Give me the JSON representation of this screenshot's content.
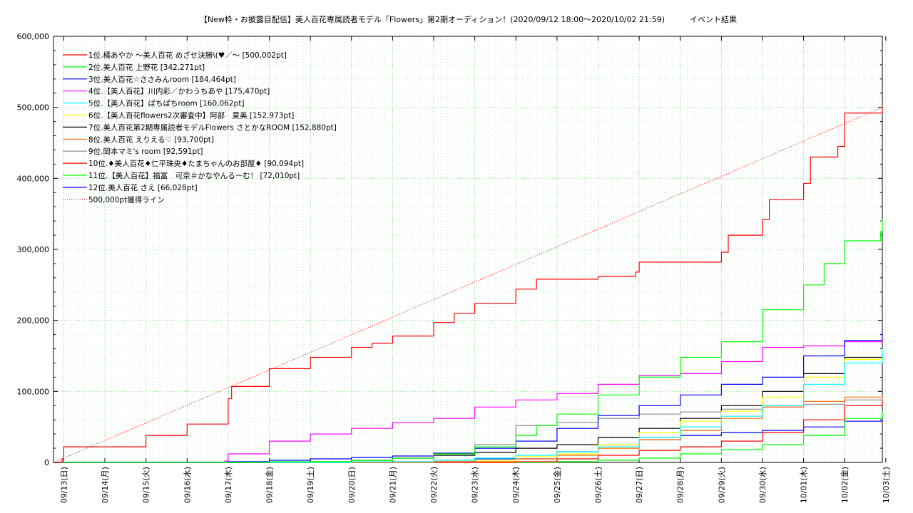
{
  "chart_data": {
    "type": "line",
    "title": "【New枠・お披露目配信】美人百花専属読者モデル「Flowers」第2期オーディション！(2020/09/12 18:00〜2020/10/02 21:59)",
    "subtitle": "イベント結果",
    "x_start": "2020-09-12 18:00",
    "x_end": "2020-10-02 21:59",
    "x_tick_labels": [
      "09/13(日)",
      "09/14(月)",
      "09/15(火)",
      "09/16(水)",
      "09/17(木)",
      "09/18(金)",
      "09/19(土)",
      "09/20(日)",
      "09/21(月)",
      "09/22(火)",
      "09/23(水)",
      "09/24(木)",
      "09/25(金)",
      "09/26(土)",
      "09/27(日)",
      "09/28(月)",
      "09/29(火)",
      "09/30(水)",
      "10/01(木)",
      "10/02(金)",
      "10/03(土)"
    ],
    "y_tick_labels": [
      "0",
      "100,000",
      "200,000",
      "300,000",
      "400,000",
      "500,000",
      "600,000"
    ],
    "ylim": [
      0,
      600000
    ],
    "grid": true,
    "legend_position": "top-left",
    "target_line": {
      "name": "500,000pt獲得ライン",
      "color": "#ff0000",
      "x": [
        "09/12 18:00",
        "10/02 21:59"
      ],
      "y": [
        0,
        500000
      ]
    },
    "series": [
      {
        "name": "1位.橘あやか 〜美人百花 めざせ決勝\\(♥／〜 [500,002pt]",
        "color": "#ff0000",
        "x": [
          "09/12 18:00",
          "09/12 23:00",
          "09/13 00:00",
          "09/14 22:00",
          "09/15 00:00",
          "09/15 22:00",
          "09/16 00:00",
          "09/16 22:00",
          "09/17 00:00",
          "09/17 02:00",
          "09/18 00:00",
          "09/19 00:00",
          "09/20 00:00",
          "09/20 12:00",
          "09/21 00:00",
          "09/22 00:00",
          "09/22 12:00",
          "09/23 00:00",
          "09/24 00:00",
          "09/24 12:00",
          "09/26 00:00",
          "09/26 22:00",
          "09/27 00:00",
          "09/29 00:00",
          "09/29 04:00",
          "09/30 00:00",
          "09/30 04:00",
          "10/01 00:00",
          "10/01 04:00",
          "10/01 20:00",
          "10/02 00:00",
          "10/02 21:59"
        ],
        "y": [
          0,
          5000,
          22000,
          22000,
          38000,
          38000,
          54000,
          54000,
          90000,
          107000,
          132000,
          148000,
          162000,
          168000,
          178000,
          197000,
          210000,
          224000,
          244000,
          258000,
          262000,
          268000,
          282000,
          296000,
          320000,
          342000,
          370000,
          393000,
          430000,
          445000,
          492000,
          500002
        ]
      },
      {
        "name": "2位.美人百花 上野花 [342,271pt]",
        "color": "#00ff00",
        "x": [
          "09/12 18:00",
          "09/18 00:00",
          "09/20 00:00",
          "09/21 00:00",
          "09/22 00:00",
          "09/23 00:00",
          "09/24 00:00",
          "09/24 12:00",
          "09/25 00:00",
          "09/26 00:00",
          "09/27 00:00",
          "09/28 00:00",
          "09/29 00:00",
          "09/30 00:00",
          "10/01 00:00",
          "10/01 12:00",
          "10/02 00:00",
          "10/02 21:00",
          "10/02 21:59"
        ],
        "y": [
          0,
          1000,
          3000,
          6000,
          12000,
          22000,
          38000,
          52000,
          68000,
          95000,
          120000,
          148000,
          170000,
          215000,
          250000,
          280000,
          312000,
          325000,
          342271
        ]
      },
      {
        "name": "3位.美人百花☆ささみんroom [184,464pt]",
        "color": "#0000ff",
        "x": [
          "09/12 18:00",
          "09/17 00:00",
          "09/18 00:00",
          "09/19 00:00",
          "09/20 00:00",
          "09/21 00:00",
          "09/22 00:00",
          "09/23 00:00",
          "09/24 00:00",
          "09/25 00:00",
          "09/26 00:00",
          "09/27 00:00",
          "09/28 00:00",
          "09/29 00:00",
          "09/30 00:00",
          "10/01 00:00",
          "10/02 00:00",
          "10/02 21:59"
        ],
        "y": [
          0,
          1000,
          3000,
          5000,
          7000,
          9000,
          13000,
          20000,
          30000,
          48000,
          66000,
          80000,
          95000,
          110000,
          120000,
          150000,
          172000,
          184464
        ]
      },
      {
        "name": "4位.【美人百花】川内彩／かわうちあや [175,470pt]",
        "color": "#ff00ff",
        "x": [
          "09/12 18:00",
          "09/16 22:00",
          "09/17 00:00",
          "09/18 00:00",
          "09/19 00:00",
          "09/20 00:00",
          "09/21 00:00",
          "09/22 00:00",
          "09/23 00:00",
          "09/24 00:00",
          "09/25 00:00",
          "09/26 00:00",
          "09/27 00:00",
          "09/28 00:00",
          "09/29 00:00",
          "09/30 00:00",
          "10/01 00:00",
          "10/02 00:00",
          "10/02 21:59"
        ],
        "y": [
          0,
          2000,
          12000,
          30000,
          40000,
          48000,
          56000,
          62000,
          78000,
          88000,
          97000,
          110000,
          122000,
          125000,
          142000,
          162000,
          164000,
          170000,
          175470
        ]
      },
      {
        "name": "5位.【美人百花】ぱちぱちroom [160,062pt]",
        "color": "#00ffff",
        "x": [
          "09/12 18:00",
          "09/20 00:00",
          "09/22 00:00",
          "09/23 00:00",
          "09/24 00:00",
          "09/25 00:00",
          "09/26 00:00",
          "09/27 00:00",
          "09/28 00:00",
          "09/29 00:00",
          "09/30 00:00",
          "10/01 00:00",
          "10/02 00:00",
          "10/02 21:59"
        ],
        "y": [
          0,
          1000,
          3000,
          6000,
          10000,
          15000,
          22000,
          35000,
          50000,
          65000,
          80000,
          110000,
          140000,
          160062
        ]
      },
      {
        "name": "6位.【美人百花flowers2次審査中】阿部　夏美 [152,973pt]",
        "color": "#ffff00",
        "x": [
          "09/12 18:00",
          "09/20 00:00",
          "09/22 00:00",
          "09/24 00:00",
          "09/25 00:00",
          "09/26 00:00",
          "09/27 00:00",
          "09/28 00:00",
          "09/29 00:00",
          "09/30 00:00",
          "10/01 00:00",
          "10/02 00:00",
          "10/02 21:59"
        ],
        "y": [
          0,
          1000,
          3000,
          8000,
          12000,
          25000,
          42000,
          58000,
          72000,
          92000,
          120000,
          145000,
          152973
        ]
      },
      {
        "name": "7位.美人百花第2期専属読者モデルFlowers さとかなROOM [152,880pt]",
        "color": "#000000",
        "x": [
          "09/12 18:00",
          "09/19 00:00",
          "09/20 00:00",
          "09/21 00:00",
          "09/22 00:00",
          "09/23 00:00",
          "09/24 00:00",
          "09/25 00:00",
          "09/26 00:00",
          "09/27 00:00",
          "09/28 00:00",
          "09/29 00:00",
          "09/30 00:00",
          "10/01 00:00",
          "10/02 00:00",
          "10/02 21:59"
        ],
        "y": [
          0,
          1000,
          3000,
          6000,
          10000,
          14000,
          20000,
          25000,
          35000,
          48000,
          62000,
          80000,
          100000,
          125000,
          148000,
          152880
        ]
      },
      {
        "name": "8位.美人百花 えりえる♡ [93,700pt]",
        "color": "#ff6600",
        "x": [
          "09/12 18:00",
          "09/22 00:00",
          "09/24 00:00",
          "09/25 00:00",
          "09/26 00:00",
          "09/27 00:00",
          "09/28 00:00",
          "09/29 00:00",
          "09/30 00:00",
          "10/01 00:00",
          "10/02 00:00",
          "10/02 21:59"
        ],
        "y": [
          0,
          1000,
          5000,
          10000,
          20000,
          32000,
          45000,
          62000,
          78000,
          86000,
          92000,
          93700
        ]
      },
      {
        "name": "9位.岡本マミ's room [92,591pt]",
        "color": "#888888",
        "x": [
          "09/12 18:00",
          "09/22 00:00",
          "09/23 00:00",
          "09/24 00:00",
          "09/25 00:00",
          "09/26 00:00",
          "09/27 00:00",
          "09/28 00:00",
          "09/29 00:00",
          "09/30 00:00",
          "10/01 00:00",
          "10/02 00:00",
          "10/02 21:59"
        ],
        "y": [
          0,
          10000,
          25000,
          52000,
          56000,
          62000,
          68000,
          71000,
          75000,
          78000,
          82000,
          88000,
          92591
        ]
      },
      {
        "name": "10位.♦美人百花♦仁平珠央♦たまちゃんのお部屋♦ [90,094pt]",
        "color": "#ff0000",
        "x": [
          "09/12 18:00",
          "09/24 00:00",
          "09/25 00:00",
          "09/26 00:00",
          "09/27 00:00",
          "09/28 00:00",
          "09/29 00:00",
          "09/30 00:00",
          "10/01 00:00",
          "10/02 00:00",
          "10/02 21:59"
        ],
        "y": [
          0,
          1000,
          5000,
          10000,
          17000,
          22000,
          30000,
          42000,
          60000,
          80000,
          90094
        ]
      },
      {
        "name": "11位.【美人百花】福冨　可奈＃かなやんるーむ！ [72,010pt]",
        "color": "#00ff00",
        "x": [
          "09/12 18:00",
          "09/25 00:00",
          "09/26 00:00",
          "09/27 00:00",
          "09/28 00:00",
          "09/29 00:00",
          "09/30 00:00",
          "10/01 00:00",
          "10/02 00:00",
          "10/02 21:59"
        ],
        "y": [
          0,
          1000,
          3000,
          6000,
          12000,
          18000,
          25000,
          38000,
          62000,
          72010
        ]
      },
      {
        "name": "12位.美人百花 さえ [66,028pt]",
        "color": "#0000ff",
        "x": [
          "09/12 18:00",
          "09/21 00:00",
          "09/23 00:00",
          "09/25 00:00",
          "09/26 00:00",
          "09/27 00:00",
          "09/28 00:00",
          "09/29 00:00",
          "09/30 00:00",
          "10/01 00:00",
          "10/02 00:00",
          "10/02 21:59"
        ],
        "y": [
          0,
          1000,
          5000,
          15000,
          25000,
          32000,
          38000,
          42000,
          45000,
          50000,
          58000,
          66028
        ]
      }
    ]
  }
}
